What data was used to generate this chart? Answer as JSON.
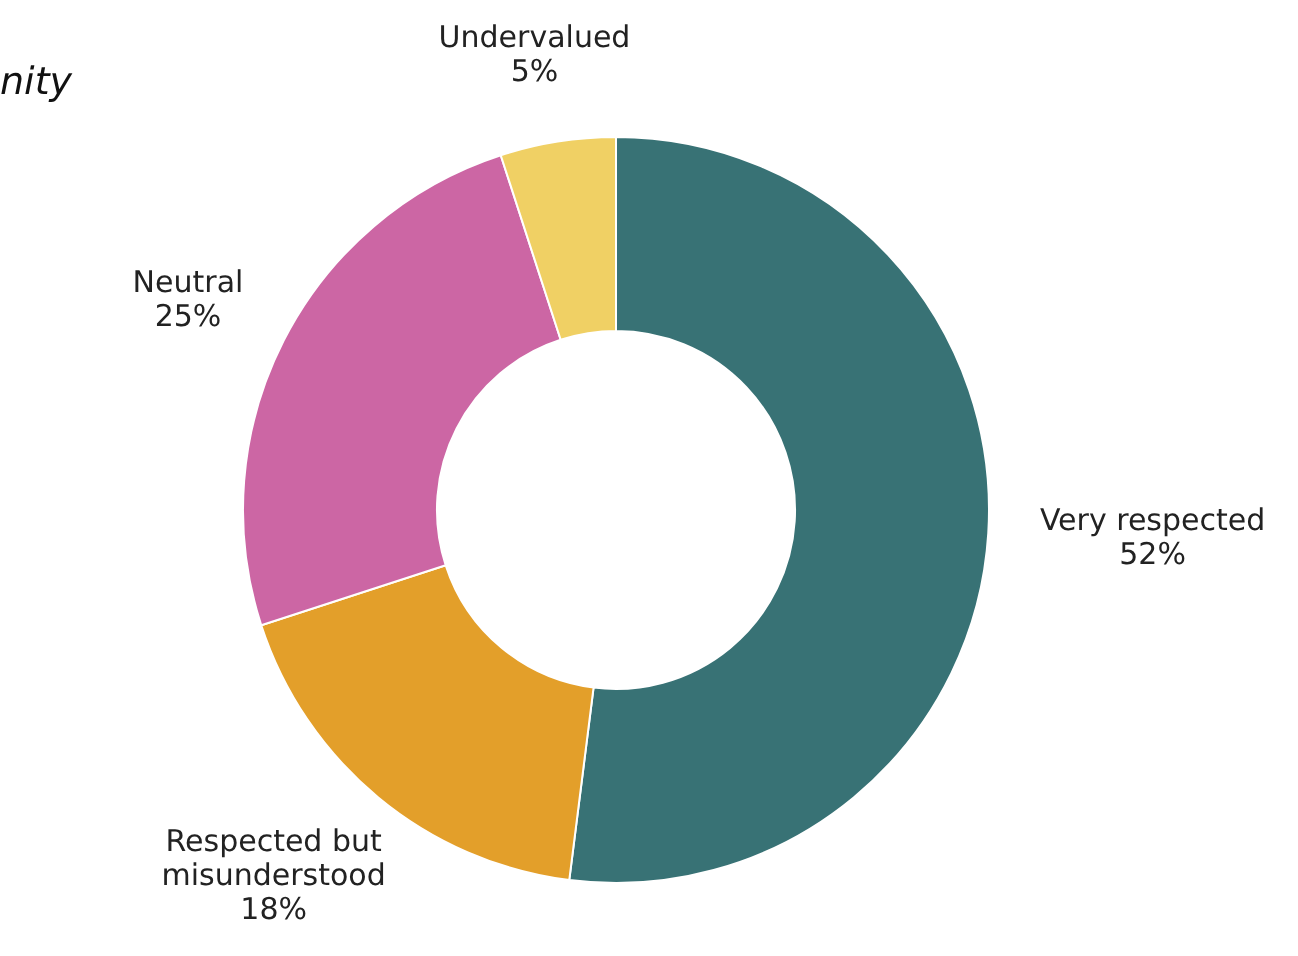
{
  "chart_data": {
    "type": "donut",
    "title": "nity",
    "categories": [
      "Very respected",
      "Respected but misunderstood",
      "Neutral",
      "Undervalued"
    ],
    "values": [
      52,
      18,
      25,
      5
    ],
    "colors": [
      "#387275",
      "#e39f2a",
      "#cc66a4",
      "#f0d064"
    ],
    "value_labels": [
      "52%",
      "18%",
      "25%",
      "5%"
    ],
    "legend": false
  }
}
